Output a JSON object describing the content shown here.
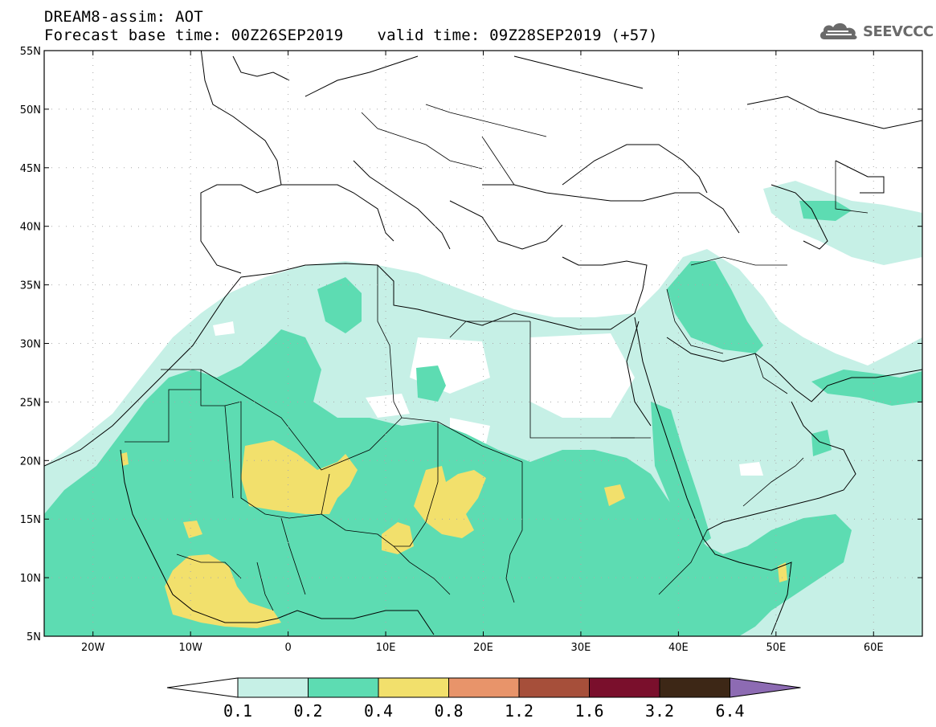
{
  "header": {
    "line1": "DREAM8-assim: AOT",
    "base_time": "Forecast base time: 00Z26SEP2019",
    "valid_time": "valid time: 09Z28SEP2019 (+57)"
  },
  "logo": {
    "text": "SEEVCCC",
    "icon": "cloud-logo-icon"
  },
  "axes": {
    "lat_labels": [
      "55N",
      "50N",
      "45N",
      "40N",
      "35N",
      "30N",
      "25N",
      "20N",
      "15N",
      "10N",
      "5N"
    ],
    "lon_labels": [
      "20W",
      "10W",
      "0",
      "10E",
      "20E",
      "30E",
      "40E",
      "50E",
      "60E"
    ],
    "lat_range": [
      5,
      55
    ],
    "lon_range": [
      -25,
      65
    ]
  },
  "colorbar": {
    "labels": [
      "0.1",
      "0.2",
      "0.4",
      "0.8",
      "1.2",
      "1.6",
      "3.2",
      "6.4"
    ],
    "colors": [
      "#ffffff",
      "#c6f0e6",
      "#5ddcb2",
      "#f2e06c",
      "#e8946a",
      "#a64f3a",
      "#7a0f2c",
      "#3d2716",
      "#8d6bb3"
    ]
  }
}
